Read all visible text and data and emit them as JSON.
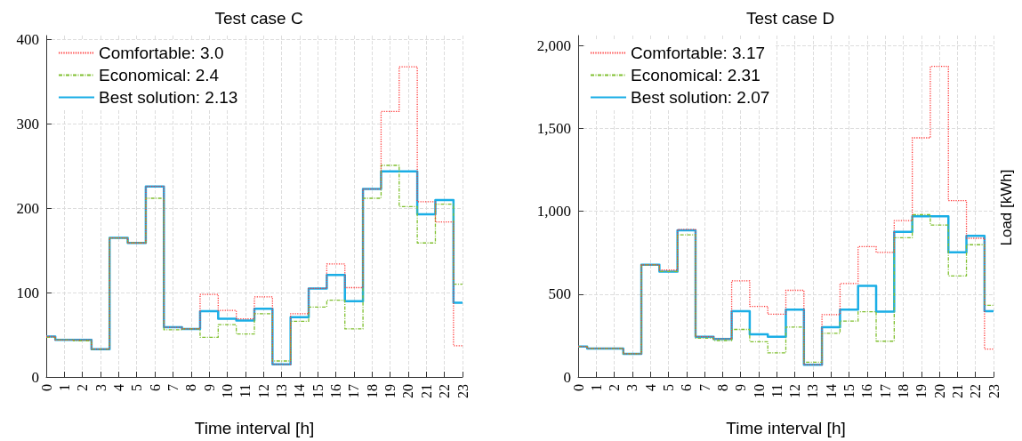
{
  "chart_data": [
    {
      "type": "step",
      "title": "Test case C",
      "xlabel": "Time interval [h]",
      "x": [
        0,
        1,
        2,
        3,
        4,
        5,
        6,
        7,
        8,
        9,
        10,
        11,
        12,
        13,
        14,
        15,
        16,
        17,
        18,
        19,
        20,
        21,
        22,
        23
      ],
      "series": [
        {
          "name": "Comfortable: 3.0",
          "color": "#ff3333",
          "line_style": "dotted",
          "values": [
            48,
            44,
            44,
            33,
            165,
            159,
            226,
            59,
            57,
            98,
            79,
            69,
            95,
            15,
            75,
            105,
            134,
            106,
            223,
            315,
            368,
            208,
            184,
            37
          ]
        },
        {
          "name": "Economical: 2.4",
          "color": "#80c030",
          "line_style": "dashed",
          "values": [
            47,
            44,
            43,
            33,
            165,
            159,
            212,
            56,
            57,
            47,
            62,
            51,
            75,
            19,
            66,
            83,
            91,
            57,
            212,
            251,
            202,
            159,
            205,
            110
          ]
        },
        {
          "name": "Best solution: 2.13",
          "color": "#1aaee6",
          "line_style": "solid",
          "values": [
            48,
            44,
            44,
            33,
            165,
            159,
            226,
            59,
            57,
            78,
            69,
            67,
            81,
            15,
            71,
            105,
            121,
            90,
            223,
            244,
            244,
            193,
            210,
            88
          ]
        }
      ],
      "xlim": [
        0,
        23
      ],
      "xticks": [
        0,
        1,
        2,
        3,
        4,
        5,
        6,
        7,
        8,
        9,
        10,
        11,
        12,
        13,
        14,
        15,
        16,
        17,
        18,
        19,
        20,
        21,
        22,
        23
      ],
      "ylim": [
        0,
        405
      ],
      "yticks": [
        0,
        100,
        200,
        300,
        400
      ],
      "grid": true,
      "legend": "top left",
      "marker": "none"
    },
    {
      "type": "step",
      "title": "Test case D",
      "xlabel": "Time interval [h]",
      "ylabel": "Load [kWh]",
      "x": [
        0,
        1,
        2,
        3,
        4,
        5,
        6,
        7,
        8,
        9,
        10,
        11,
        12,
        13,
        14,
        15,
        16,
        17,
        18,
        19,
        20,
        21,
        22,
        23
      ],
      "series": [
        {
          "name": "Comfortable: 3.17",
          "color": "#ff3333",
          "line_style": "dotted",
          "values": [
            184,
            172,
            172,
            140,
            677,
            645,
            890,
            243,
            230,
            580,
            426,
            379,
            523,
            74,
            376,
            564,
            787,
            752,
            943,
            1443,
            1874,
            1064,
            837,
            168
          ]
        },
        {
          "name": "Economical: 2.31",
          "color": "#80c030",
          "line_style": "dashed",
          "values": [
            184,
            172,
            172,
            140,
            677,
            636,
            858,
            234,
            220,
            287,
            213,
            145,
            301,
            89,
            264,
            337,
            394,
            216,
            840,
            979,
            917,
            610,
            798,
            433
          ]
        },
        {
          "name": "Best solution: 2.07",
          "color": "#1aaee6",
          "line_style": "solid",
          "values": [
            184,
            172,
            172,
            140,
            677,
            636,
            885,
            243,
            230,
            397,
            257,
            243,
            406,
            74,
            301,
            406,
            550,
            394,
            876,
            970,
            970,
            752,
            851,
            397
          ]
        }
      ],
      "xlim": [
        0,
        23
      ],
      "xticks": [
        0,
        1,
        2,
        3,
        4,
        5,
        6,
        7,
        8,
        9,
        10,
        11,
        12,
        13,
        14,
        15,
        16,
        17,
        18,
        19,
        20,
        21,
        22,
        23
      ],
      "ylim": [
        0,
        2060
      ],
      "yticks": [
        0,
        {
          "value": 500,
          "label": "500"
        },
        {
          "value": 1000,
          "label": "1,000"
        },
        {
          "value": 1500,
          "label": "1,500"
        },
        {
          "value": 2000,
          "label": "2,000"
        }
      ],
      "grid": true,
      "legend": "top left",
      "marker": "none"
    }
  ]
}
